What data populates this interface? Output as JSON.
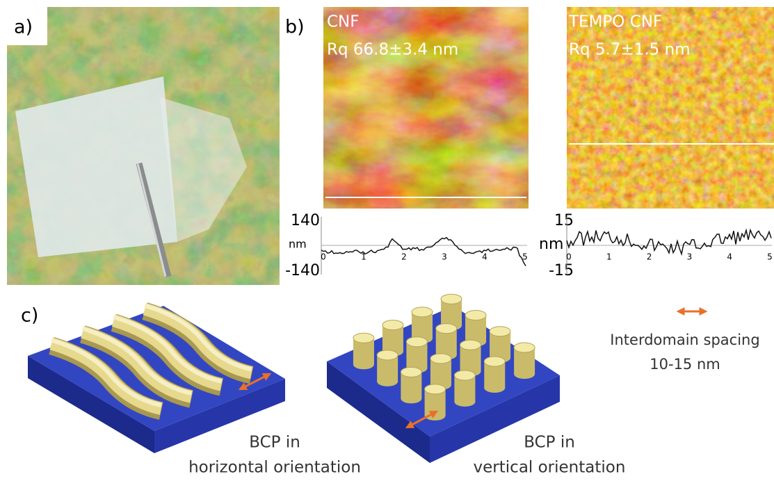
{
  "panel_a": {
    "label": "a)"
  },
  "panel_b": {
    "label": "b)",
    "images": [
      {
        "title": "CNF",
        "rq": "Rq  66.8±3.4 nm"
      },
      {
        "title": "TEMPO CNF",
        "rq": "Rq 5.7±1.5 nm"
      }
    ],
    "profiles": [
      {
        "y_top": "140",
        "unit": "nm",
        "y_bottom": "-140",
        "x_ticks": [
          "0",
          "1",
          "2",
          "3",
          "4",
          "5"
        ]
      },
      {
        "y_top": "15",
        "unit": "nm",
        "y_bottom": "-15",
        "x_ticks": [
          "0",
          "1",
          "2",
          "3",
          "4",
          "5"
        ]
      }
    ]
  },
  "panel_c": {
    "label": "c)",
    "legend": [
      "Interdomain spacing",
      "10-15 nm"
    ],
    "captions": [
      [
        "BCP in",
        "horizontal orientation"
      ],
      [
        "BCP in",
        "vertical orientation"
      ]
    ]
  }
}
